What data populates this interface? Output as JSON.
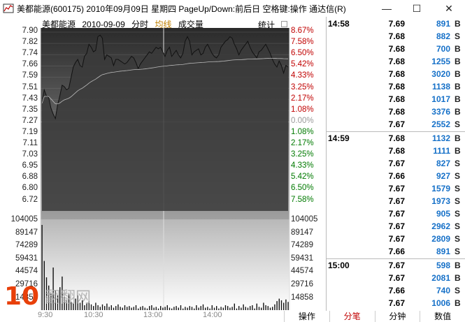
{
  "window": {
    "title": "美都能源(600175) 2010年09月09日 星期四 PageUp/Down:前后日 空格键:操作 通达信(R)",
    "minimize": "—",
    "maximize": "☐",
    "close": "✕"
  },
  "chart_header": {
    "name": "美都能源",
    "date": "2010-09-09",
    "mode": "分时",
    "avg": "均线",
    "volume": "成交量",
    "stat": "统计"
  },
  "price_ticks": [
    "7.90",
    "7.82",
    "7.74",
    "7.66",
    "7.59",
    "7.51",
    "7.43",
    "7.35",
    "7.27",
    "7.19",
    "7.11",
    "7.03",
    "6.95",
    "6.88",
    "6.80",
    "6.72"
  ],
  "pct_ticks": [
    "8.67%",
    "7.58%",
    "6.50%",
    "5.42%",
    "4.33%",
    "3.25%",
    "2.17%",
    "1.08%",
    "0.00%",
    "1.08%",
    "2.17%",
    "3.25%",
    "4.33%",
    "5.42%",
    "6.50%",
    "7.58%"
  ],
  "vol_ticks": [
    "104005",
    "89147",
    "74289",
    "59431",
    "44574",
    "29716",
    "14858"
  ],
  "x_ticks": [
    "9:30",
    "10:30",
    "13:00",
    "14:00"
  ],
  "watermark": {
    "big": "10",
    "text": "翻翻网",
    "sub": "Huang.cn"
  },
  "colors": {
    "up": "#c00000",
    "down": "#007a00",
    "vol": "#1570c8"
  },
  "chart_data": {
    "type": "area",
    "title": "美都能源 2010-09-09 分时",
    "prev_close": 7.27,
    "ylim": [
      6.72,
      7.9
    ],
    "price_series": [
      7.43,
      7.52,
      7.48,
      7.47,
      7.4,
      7.36,
      7.33,
      7.42,
      7.48,
      7.55,
      7.54,
      7.52,
      7.53,
      7.6,
      7.67,
      7.7,
      7.72,
      7.68,
      7.67,
      7.74,
      7.76,
      7.82,
      7.8,
      7.77,
      7.78,
      7.87,
      7.88,
      7.86,
      7.72,
      7.75,
      7.74,
      7.73,
      7.68,
      7.72,
      7.72,
      7.71,
      7.7,
      7.69,
      7.7,
      7.72,
      7.74,
      7.73,
      7.7,
      7.66,
      7.69,
      7.71,
      7.73,
      7.75,
      7.77,
      7.76,
      7.78,
      7.8,
      7.79,
      7.8,
      7.77,
      7.74,
      7.78,
      7.8,
      7.74,
      7.76,
      7.78,
      7.75,
      7.73,
      7.76,
      7.84,
      7.87,
      7.84,
      7.75,
      7.77,
      7.78,
      7.79,
      7.75,
      7.76,
      7.8,
      7.82,
      7.79,
      7.76,
      7.74,
      7.73,
      7.75,
      7.8,
      7.82,
      7.84,
      7.85,
      7.87,
      7.86,
      7.82,
      7.79,
      7.75,
      7.78,
      7.8,
      7.82,
      7.84,
      7.8,
      7.77,
      7.75,
      7.73,
      7.77,
      7.78,
      7.8,
      7.82,
      7.79,
      7.76,
      7.72,
      7.69,
      7.67,
      7.71,
      7.68,
      7.63,
      7.68,
      7.67
    ],
    "volume_series": [
      104005,
      60000,
      40000,
      30000,
      20000,
      52000,
      24000,
      18000,
      28000,
      41000,
      16000,
      12000,
      20000,
      10000,
      8000,
      14000,
      18000,
      9000,
      12000,
      6000,
      8000,
      11000,
      7000,
      5000,
      9000,
      6000,
      4000,
      7000,
      5000,
      8000,
      4000,
      6000,
      3000,
      5000,
      7000,
      4000,
      3000,
      6000,
      4000,
      5000,
      3000,
      4000,
      6000,
      2000,
      4000,
      5000,
      3000,
      2000,
      5000,
      6000,
      3000,
      4000,
      2000,
      5000,
      3000,
      4000,
      6000,
      3000,
      2000,
      4000,
      5000,
      3000,
      6000,
      2000,
      4000,
      3000,
      5000,
      4000,
      2000,
      6000,
      3000,
      5000,
      7000,
      3000,
      4000,
      2000,
      6000,
      3000,
      5000,
      2000,
      4000,
      3000,
      6000,
      5000,
      3000,
      4000,
      8000,
      2000,
      5000,
      3000,
      7000,
      4000,
      3000,
      5000,
      6000,
      2000,
      8000,
      4000,
      3000,
      9000,
      6000,
      5000,
      3000,
      4000,
      7000,
      11000,
      14000,
      12000,
      9000,
      13000,
      10000
    ],
    "xlabel": "",
    "ylabel": ""
  },
  "ticks": [
    {
      "time": "14:58",
      "price": "7.69",
      "vol": "891",
      "dir": "B"
    },
    {
      "time": "",
      "price": "7.68",
      "vol": "882",
      "dir": "S"
    },
    {
      "time": "",
      "price": "7.68",
      "vol": "700",
      "dir": "B"
    },
    {
      "time": "",
      "price": "7.68",
      "vol": "1255",
      "dir": "B"
    },
    {
      "time": "",
      "price": "7.68",
      "vol": "3020",
      "dir": "B"
    },
    {
      "time": "",
      "price": "7.68",
      "vol": "1138",
      "dir": "B"
    },
    {
      "time": "",
      "price": "7.68",
      "vol": "1017",
      "dir": "B"
    },
    {
      "time": "",
      "price": "7.68",
      "vol": "3376",
      "dir": "B"
    },
    {
      "time": "",
      "price": "7.67",
      "vol": "2552",
      "dir": "S"
    },
    {
      "time": "14:59",
      "price": "7.68",
      "vol": "1132",
      "dir": "B"
    },
    {
      "time": "",
      "price": "7.68",
      "vol": "1111",
      "dir": "B"
    },
    {
      "time": "",
      "price": "7.67",
      "vol": "827",
      "dir": "S"
    },
    {
      "time": "",
      "price": "7.66",
      "vol": "927",
      "dir": "S"
    },
    {
      "time": "",
      "price": "7.67",
      "vol": "1579",
      "dir": "S"
    },
    {
      "time": "",
      "price": "7.67",
      "vol": "1973",
      "dir": "S"
    },
    {
      "time": "",
      "price": "7.67",
      "vol": "905",
      "dir": "S"
    },
    {
      "time": "",
      "price": "7.67",
      "vol": "2962",
      "dir": "S"
    },
    {
      "time": "",
      "price": "7.67",
      "vol": "2809",
      "dir": "S"
    },
    {
      "time": "",
      "price": "7.66",
      "vol": "891",
      "dir": "S"
    },
    {
      "time": "15:00",
      "price": "7.67",
      "vol": "598",
      "dir": "B"
    },
    {
      "time": "",
      "price": "7.67",
      "vol": "2081",
      "dir": "B"
    },
    {
      "time": "",
      "price": "7.66",
      "vol": "740",
      "dir": "S"
    },
    {
      "time": "",
      "price": "7.67",
      "vol": "1006",
      "dir": "B"
    }
  ],
  "tabs": [
    "操作",
    "分笔",
    "分钟",
    "数值"
  ]
}
